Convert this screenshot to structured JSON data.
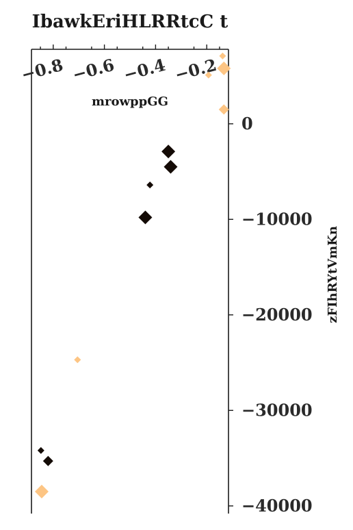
{
  "chart_data": {
    "type": "scatter",
    "title": "IbawkEriHLRRtcC t",
    "xlabel": "mrowppGG",
    "ylabel": "zFIhRYtVmKn",
    "x_ticks": [
      -0.8,
      -0.6,
      -0.4,
      -0.2
    ],
    "x_tick_labels": [
      "−0.8",
      "−0.6",
      "−0.4",
      "−0.2"
    ],
    "y_ticks": [
      0,
      -10000,
      -20000,
      -30000,
      -40000
    ],
    "y_tick_labels": [
      "0",
      "−10000",
      "−20000",
      "−30000",
      "−40000"
    ],
    "xlim": [
      -0.885,
      -0.115
    ],
    "ylim": [
      -40800,
      7800
    ],
    "x_axis_position": "top",
    "y_axis_position": "right",
    "grid": false,
    "marker": "diamond",
    "colors": {
      "dark": "#140b06",
      "light": "#fdc584"
    },
    "points": [
      {
        "x": -0.138,
        "y": 7100,
        "size": 1,
        "color": "light"
      },
      {
        "x": -0.133,
        "y": 5800,
        "size": 3,
        "color": "light"
      },
      {
        "x": -0.193,
        "y": 5100,
        "size": 1,
        "color": "light"
      },
      {
        "x": -0.133,
        "y": 1500,
        "size": 2,
        "color": "light"
      },
      {
        "x": -0.35,
        "y": -2900,
        "size": 3,
        "color": "dark"
      },
      {
        "x": -0.341,
        "y": -4500,
        "size": 3,
        "color": "dark"
      },
      {
        "x": -0.422,
        "y": -6400,
        "size": 1,
        "color": "dark"
      },
      {
        "x": -0.44,
        "y": -9800,
        "size": 3,
        "color": "dark"
      },
      {
        "x": -0.705,
        "y": -24700,
        "size": 1,
        "color": "light"
      },
      {
        "x": -0.848,
        "y": -34200,
        "size": 1,
        "color": "dark"
      },
      {
        "x": -0.82,
        "y": -35300,
        "size": 2,
        "color": "dark"
      },
      {
        "x": -0.845,
        "y": -38500,
        "size": 3,
        "color": "light"
      }
    ]
  }
}
